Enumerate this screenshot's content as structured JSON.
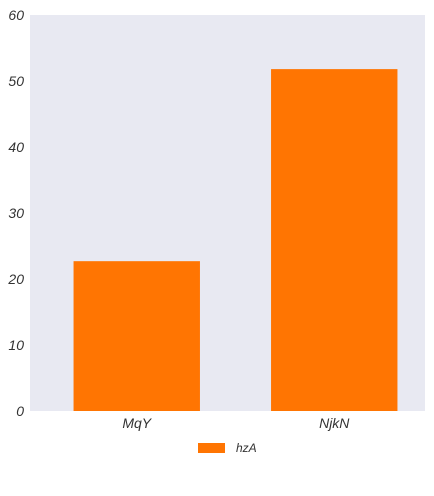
{
  "chart_data": {
    "type": "bar",
    "categories": [
      "MqY",
      "NjkN"
    ],
    "series": [
      {
        "name": "hzA",
        "values": [
          22.7,
          51.8
        ],
        "color": "#ff7502"
      }
    ],
    "ylim": [
      0,
      60
    ],
    "yticks": [
      "0",
      "10",
      "20",
      "30",
      "40",
      "50",
      "60"
    ],
    "title": "",
    "xlabel": "",
    "ylabel": "",
    "grid": false,
    "legend_position": "bottom-center",
    "plot_background": "#e8e9f2"
  }
}
